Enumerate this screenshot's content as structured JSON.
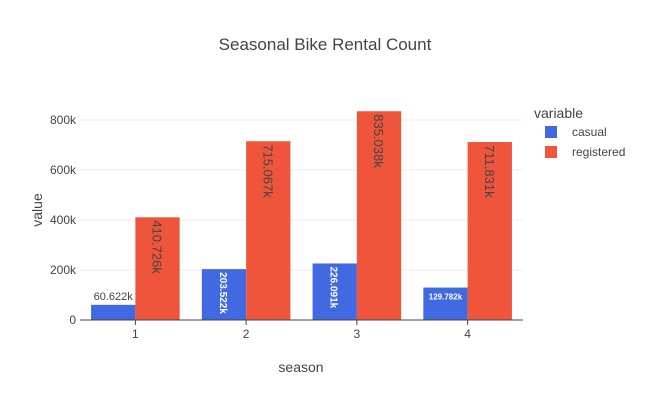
{
  "chart_data": {
    "type": "bar",
    "title": "Seasonal Bike Rental Count",
    "xlabel": "season",
    "ylabel": "value",
    "categories": [
      "1",
      "2",
      "3",
      "4"
    ],
    "ylim": [
      0,
      880000
    ],
    "yticks": [
      0,
      200000,
      400000,
      600000,
      800000
    ],
    "ytick_labels": [
      "0",
      "200k",
      "400k",
      "600k",
      "800k"
    ],
    "legend_title": "variable",
    "legend_position": "top-right",
    "grid": true,
    "series": [
      {
        "name": "casual",
        "color": "#4169e1",
        "values": [
          60622,
          203522,
          226091,
          129782
        ],
        "labels": [
          "60.622k",
          "203.522k",
          "226.091k",
          "129.782k"
        ]
      },
      {
        "name": "registered",
        "color": "#ef553b",
        "values": [
          410726,
          715067,
          835038,
          711831
        ],
        "labels": [
          "410.726k",
          "715.067k",
          "835.038k",
          "711.831k"
        ]
      }
    ]
  }
}
